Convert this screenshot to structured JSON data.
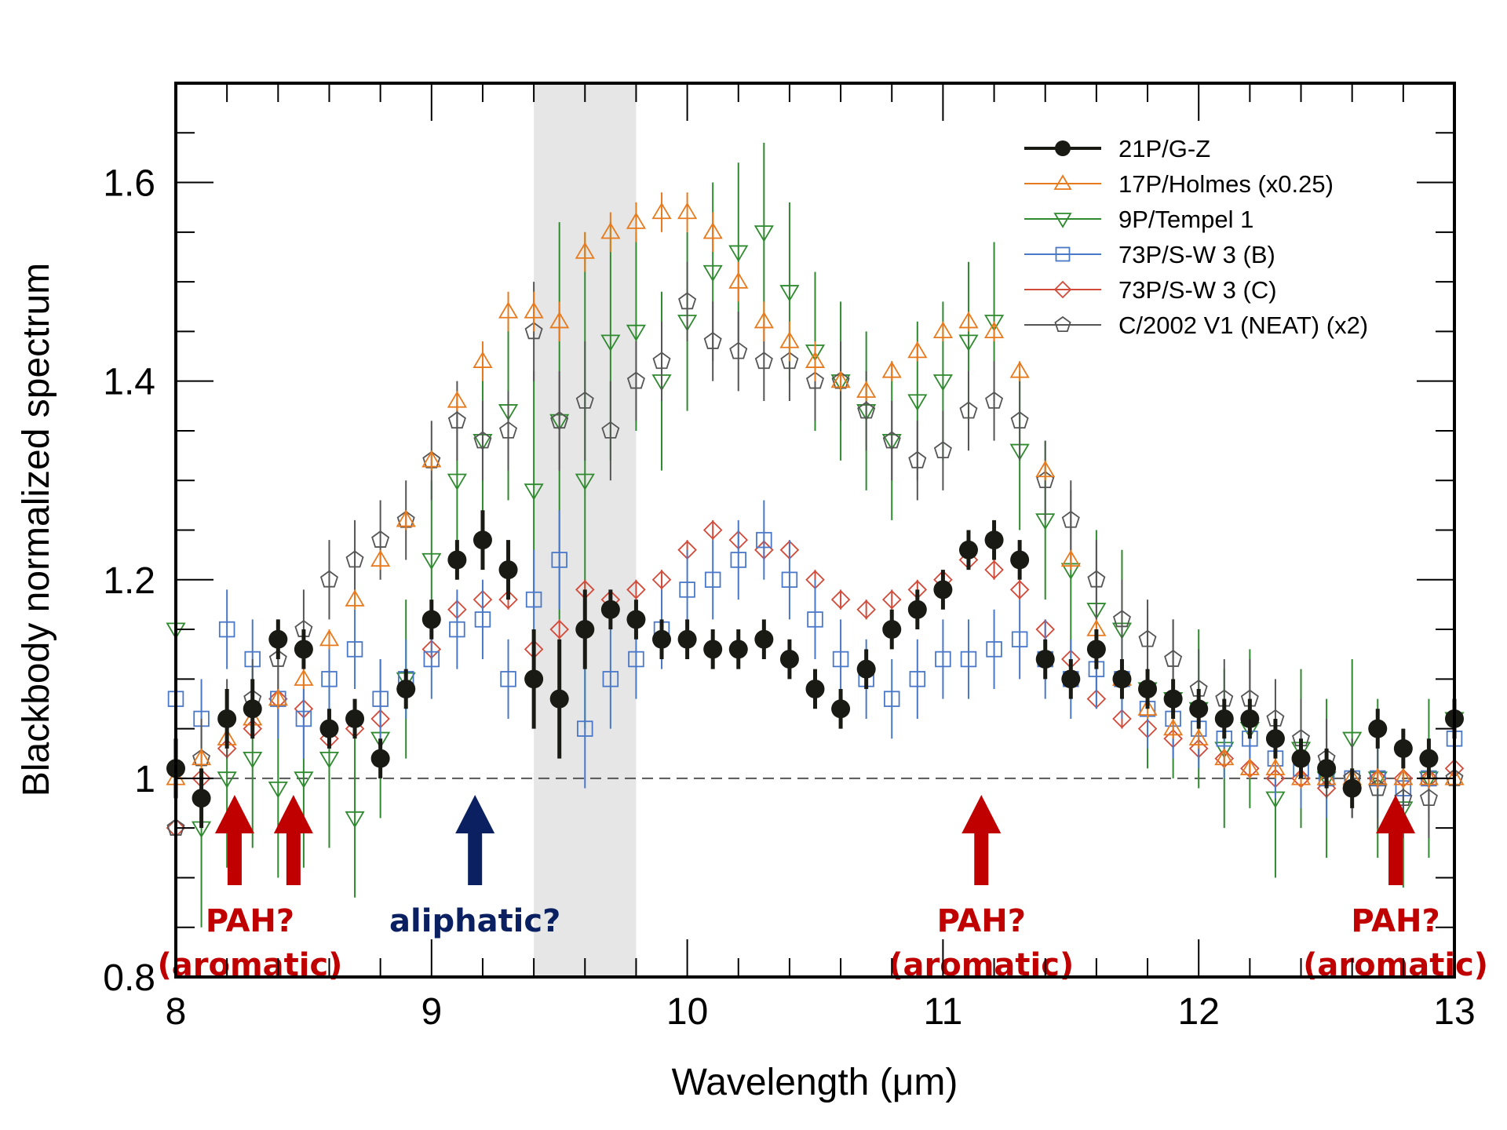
{
  "chart_data": {
    "type": "scatter",
    "title": "",
    "xlabel": "Wavelength (μm)",
    "ylabel": "Blackbody normalized spectrum",
    "xlim": [
      8,
      13
    ],
    "ylim": [
      0.8,
      1.7
    ],
    "xticks": [
      8,
      9,
      10,
      11,
      12,
      13
    ],
    "xtick_labels": [
      "8",
      "9",
      "10",
      "11",
      "12",
      "13"
    ],
    "yticks": [
      0.8,
      1.0,
      1.2,
      1.4,
      1.6
    ],
    "ytick_labels": [
      "0.8",
      "1",
      "1.2",
      "1.4",
      "1.6"
    ],
    "x_minor_step": 0.2,
    "y_minor_step": 0.05,
    "grid": false,
    "reference_line": {
      "y": 1.0,
      "style": "dashed",
      "color": "#555555"
    },
    "shaded_region": {
      "x": [
        9.4,
        9.8
      ],
      "color": "#e6e6e6"
    },
    "legend": {
      "placement": "top-right"
    },
    "x": [
      8.0,
      8.1,
      8.2,
      8.3,
      8.4,
      8.5,
      8.6,
      8.7,
      8.8,
      8.9,
      9.0,
      9.1,
      9.2,
      9.3,
      9.4,
      9.5,
      9.6,
      9.7,
      9.8,
      9.9,
      10.0,
      10.1,
      10.2,
      10.3,
      10.4,
      10.5,
      10.6,
      10.7,
      10.8,
      10.9,
      11.0,
      11.1,
      11.2,
      11.3,
      11.4,
      11.5,
      11.6,
      11.7,
      11.8,
      11.9,
      12.0,
      12.1,
      12.2,
      12.3,
      12.4,
      12.5,
      12.6,
      12.7,
      12.8,
      12.9,
      13.0
    ],
    "series": [
      {
        "name": "21P/G-Z",
        "color": "#1a1a14",
        "marker": "circle-filled",
        "line": true,
        "values": [
          1.01,
          0.98,
          1.06,
          1.07,
          1.14,
          1.13,
          1.05,
          1.06,
          1.02,
          1.09,
          1.16,
          1.22,
          1.24,
          1.21,
          1.1,
          1.08,
          1.15,
          1.17,
          1.16,
          1.14,
          1.14,
          1.13,
          1.13,
          1.14,
          1.12,
          1.09,
          1.07,
          1.11,
          1.15,
          1.17,
          1.19,
          1.23,
          1.24,
          1.22,
          1.12,
          1.1,
          1.13,
          1.1,
          1.09,
          1.08,
          1.07,
          1.06,
          1.06,
          1.04,
          1.02,
          1.01,
          0.99,
          1.05,
          1.03,
          1.02,
          1.06
        ],
        "errors": [
          0.03,
          0.03,
          0.03,
          0.03,
          0.02,
          0.02,
          0.02,
          0.02,
          0.02,
          0.02,
          0.02,
          0.02,
          0.03,
          0.03,
          0.05,
          0.06,
          0.04,
          0.02,
          0.02,
          0.02,
          0.02,
          0.02,
          0.02,
          0.02,
          0.02,
          0.02,
          0.02,
          0.02,
          0.02,
          0.02,
          0.02,
          0.02,
          0.02,
          0.02,
          0.02,
          0.02,
          0.02,
          0.02,
          0.02,
          0.02,
          0.02,
          0.02,
          0.02,
          0.02,
          0.02,
          0.02,
          0.02,
          0.02,
          0.02,
          0.02,
          0.02
        ]
      },
      {
        "name": "17P/Holmes (x0.25)",
        "color": "#e87a1e",
        "marker": "triangle-up-open",
        "line": true,
        "values": [
          1.0,
          1.02,
          1.04,
          1.06,
          1.08,
          1.1,
          1.14,
          1.18,
          1.22,
          1.26,
          1.32,
          1.38,
          1.42,
          1.47,
          1.47,
          1.46,
          1.53,
          1.55,
          1.56,
          1.57,
          1.57,
          1.55,
          1.5,
          1.46,
          1.44,
          1.42,
          1.4,
          1.39,
          1.41,
          1.43,
          1.45,
          1.46,
          1.45,
          1.41,
          1.31,
          1.22,
          1.15,
          1.1,
          1.07,
          1.05,
          1.04,
          1.02,
          1.01,
          1.01,
          1.0,
          1.0,
          1.0,
          1.0,
          1.0,
          1.0,
          1.0
        ],
        "errors": [
          0.01,
          0.01,
          0.01,
          0.01,
          0.01,
          0.01,
          0.01,
          0.01,
          0.01,
          0.01,
          0.01,
          0.01,
          0.02,
          0.02,
          0.02,
          0.02,
          0.02,
          0.02,
          0.02,
          0.02,
          0.02,
          0.02,
          0.02,
          0.02,
          0.02,
          0.02,
          0.01,
          0.01,
          0.01,
          0.01,
          0.01,
          0.01,
          0.01,
          0.01,
          0.01,
          0.01,
          0.01,
          0.01,
          0.01,
          0.01,
          0.01,
          0.01,
          0.01,
          0.01,
          0.01,
          0.01,
          0.01,
          0.01,
          0.01,
          0.01,
          0.01
        ]
      },
      {
        "name": "9P/Tempel 1",
        "color": "#2f8a2f",
        "marker": "triangle-down-open",
        "line": true,
        "values": [
          1.15,
          0.95,
          1.0,
          1.02,
          0.99,
          1.0,
          1.02,
          0.96,
          1.04,
          1.1,
          1.22,
          1.3,
          1.34,
          1.37,
          1.29,
          1.36,
          1.3,
          1.44,
          1.45,
          1.4,
          1.46,
          1.51,
          1.53,
          1.55,
          1.49,
          1.43,
          1.4,
          1.37,
          1.34,
          1.38,
          1.4,
          1.44,
          1.46,
          1.33,
          1.26,
          1.21,
          1.17,
          1.15,
          1.09,
          1.08,
          1.07,
          1.03,
          1.05,
          0.98,
          1.03,
          1.0,
          1.04,
          1.0,
          0.97,
          1.0,
          1.06
        ],
        "errors": [
          0.15,
          0.1,
          0.09,
          0.09,
          0.09,
          0.09,
          0.09,
          0.08,
          0.08,
          0.08,
          0.08,
          0.08,
          0.08,
          0.09,
          0.12,
          0.2,
          0.25,
          0.12,
          0.1,
          0.09,
          0.09,
          0.09,
          0.09,
          0.09,
          0.09,
          0.08,
          0.08,
          0.08,
          0.08,
          0.08,
          0.08,
          0.08,
          0.08,
          0.08,
          0.08,
          0.08,
          0.08,
          0.08,
          0.08,
          0.08,
          0.08,
          0.08,
          0.08,
          0.08,
          0.08,
          0.08,
          0.08,
          0.08,
          0.08,
          0.08,
          0.08
        ]
      },
      {
        "name": "73P/S-W 3 (B)",
        "color": "#4a78c8",
        "marker": "square-open",
        "line": true,
        "values": [
          1.08,
          1.06,
          1.15,
          1.12,
          1.08,
          1.06,
          1.1,
          1.13,
          1.08,
          1.1,
          1.12,
          1.15,
          1.16,
          1.1,
          1.18,
          1.22,
          1.05,
          1.1,
          1.12,
          1.15,
          1.19,
          1.2,
          1.22,
          1.24,
          1.2,
          1.16,
          1.12,
          1.1,
          1.08,
          1.1,
          1.12,
          1.12,
          1.13,
          1.14,
          1.12,
          1.1,
          1.11,
          1.1,
          1.07,
          1.06,
          1.05,
          1.04,
          1.04,
          1.02,
          1.01,
          1.0,
          1.0,
          1.0,
          0.99,
          1.0,
          1.04
        ],
        "errors": [
          0.04,
          0.04,
          0.04,
          0.04,
          0.04,
          0.04,
          0.04,
          0.04,
          0.04,
          0.04,
          0.04,
          0.04,
          0.04,
          0.04,
          0.05,
          0.05,
          0.06,
          0.05,
          0.04,
          0.04,
          0.04,
          0.04,
          0.04,
          0.04,
          0.04,
          0.04,
          0.04,
          0.04,
          0.04,
          0.04,
          0.04,
          0.04,
          0.04,
          0.04,
          0.04,
          0.04,
          0.04,
          0.04,
          0.04,
          0.04,
          0.04,
          0.04,
          0.04,
          0.04,
          0.04,
          0.04,
          0.04,
          0.04,
          0.04,
          0.04,
          0.04
        ]
      },
      {
        "name": "73P/S-W 3 (C)",
        "color": "#d24a3a",
        "marker": "diamond-open",
        "line": true,
        "values": [
          0.95,
          1.0,
          1.03,
          1.05,
          1.08,
          1.07,
          1.04,
          1.05,
          1.06,
          1.09,
          1.13,
          1.17,
          1.18,
          1.18,
          1.13,
          1.15,
          1.19,
          1.18,
          1.19,
          1.2,
          1.23,
          1.25,
          1.24,
          1.23,
          1.23,
          1.2,
          1.18,
          1.17,
          1.18,
          1.19,
          1.2,
          1.22,
          1.21,
          1.19,
          1.15,
          1.12,
          1.08,
          1.06,
          1.05,
          1.04,
          1.03,
          1.02,
          1.01,
          1.0,
          1.0,
          0.99,
          0.99,
          1.0,
          1.0,
          1.0,
          1.01
        ],
        "errors": [
          0.01,
          0.01,
          0.01,
          0.01,
          0.01,
          0.01,
          0.01,
          0.01,
          0.01,
          0.01,
          0.01,
          0.01,
          0.01,
          0.01,
          0.01,
          0.01,
          0.01,
          0.01,
          0.01,
          0.01,
          0.01,
          0.01,
          0.01,
          0.01,
          0.01,
          0.01,
          0.01,
          0.01,
          0.01,
          0.01,
          0.01,
          0.01,
          0.01,
          0.01,
          0.01,
          0.01,
          0.01,
          0.01,
          0.01,
          0.01,
          0.01,
          0.01,
          0.01,
          0.01,
          0.01,
          0.01,
          0.01,
          0.01,
          0.01,
          0.01,
          0.01
        ]
      },
      {
        "name": "C/2002 V1 (NEAT) (x2)",
        "color": "#555555",
        "marker": "pentagon-open",
        "line": true,
        "values": [
          0.95,
          1.02,
          1.06,
          1.08,
          1.12,
          1.15,
          1.2,
          1.22,
          1.24,
          1.26,
          1.32,
          1.36,
          1.34,
          1.35,
          1.45,
          1.36,
          1.38,
          1.35,
          1.4,
          1.42,
          1.48,
          1.44,
          1.43,
          1.42,
          1.42,
          1.4,
          1.4,
          1.37,
          1.34,
          1.32,
          1.33,
          1.37,
          1.38,
          1.36,
          1.3,
          1.26,
          1.2,
          1.16,
          1.14,
          1.12,
          1.09,
          1.08,
          1.08,
          1.06,
          1.04,
          1.02,
          1.0,
          0.99,
          0.98,
          0.98,
          1.0
        ],
        "errors": [
          0.04,
          0.04,
          0.04,
          0.04,
          0.04,
          0.04,
          0.04,
          0.04,
          0.04,
          0.04,
          0.04,
          0.04,
          0.04,
          0.04,
          0.05,
          0.05,
          0.06,
          0.05,
          0.04,
          0.04,
          0.04,
          0.04,
          0.04,
          0.04,
          0.04,
          0.04,
          0.04,
          0.04,
          0.04,
          0.04,
          0.04,
          0.04,
          0.04,
          0.04,
          0.04,
          0.04,
          0.04,
          0.04,
          0.04,
          0.04,
          0.04,
          0.04,
          0.04,
          0.04,
          0.04,
          0.04,
          0.04,
          0.04,
          0.04,
          0.04,
          0.04
        ]
      }
    ],
    "annotations": [
      {
        "x": 8.23,
        "lines": [
          "PAH?",
          "(aromatic)"
        ],
        "color": "#c00000",
        "arrow": true
      },
      {
        "x": 8.46,
        "lines": [],
        "color": "#c00000",
        "arrow": true
      },
      {
        "x": 9.17,
        "lines": [
          "aliphatic?"
        ],
        "color": "#0a2060",
        "arrow": true
      },
      {
        "x": 11.15,
        "lines": [
          "PAH?",
          "(aromatic)"
        ],
        "color": "#c00000",
        "arrow": true
      },
      {
        "x": 12.77,
        "lines": [
          "PAH?",
          "(aromatic)"
        ],
        "color": "#c00000",
        "arrow": true
      }
    ]
  }
}
